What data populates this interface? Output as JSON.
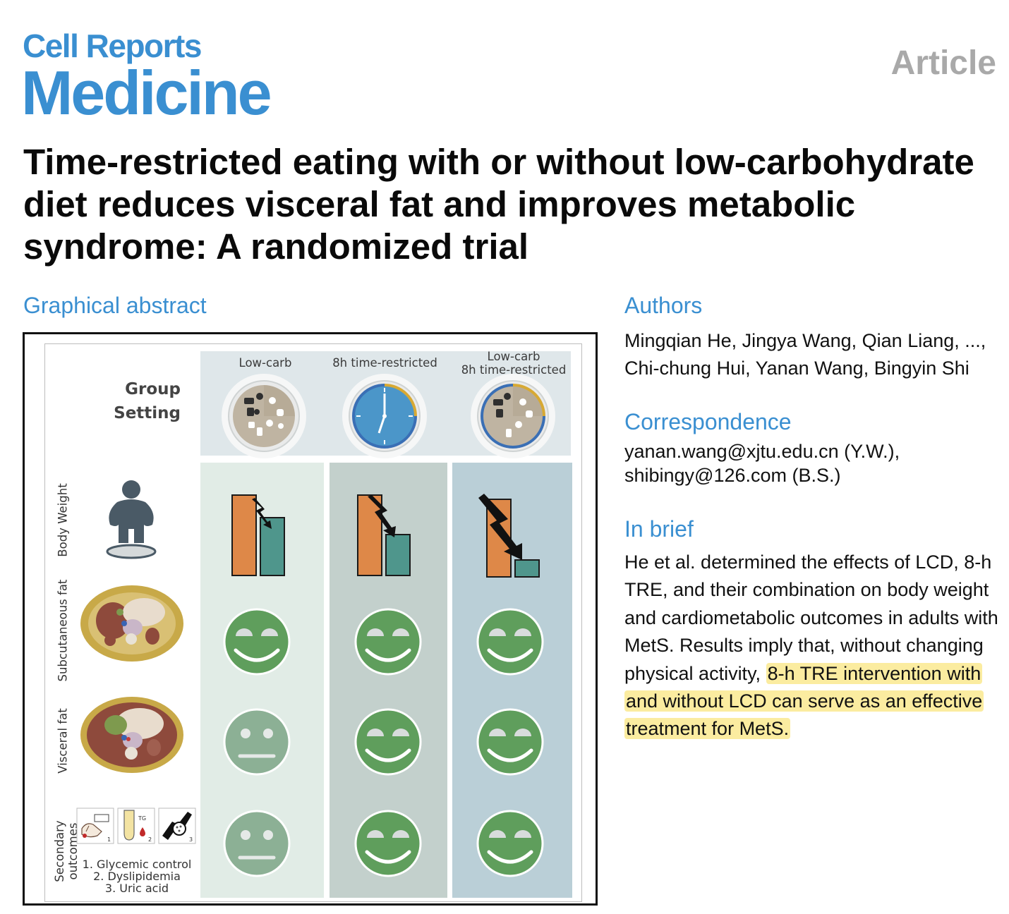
{
  "journal": {
    "line1": "Cell Reports",
    "line2": "Medicine",
    "article_type": "Article"
  },
  "title": "Time-restricted eating with or without low-carbohydrate diet reduces visceral fat and improves metabolic syndrome: A randomized trial",
  "graphical_abstract": {
    "heading": "Graphical abstract",
    "group_setting": [
      "Group",
      "Setting"
    ],
    "groups": [
      {
        "label": "Low-carb"
      },
      {
        "label": "8h time-restricted"
      },
      {
        "label_line1": "Low-carb",
        "label_line2": "8h time-restricted"
      }
    ],
    "rows": [
      {
        "label": "Body Weight"
      },
      {
        "label": "Subcutaneous fat"
      },
      {
        "label": "Visceral fat"
      },
      {
        "label_line1": "Secondary",
        "label_line2": "outcomes"
      }
    ],
    "secondary_outcomes": [
      "1. Glycemic control",
      "2. Dyslipidemia",
      "3. Uric acid"
    ],
    "icon_numbers": [
      "1",
      "2",
      "3"
    ],
    "tg_label": "TG",
    "colors": {
      "col1_bg": "#e1ece6",
      "col2_bg": "#c3d0cc",
      "col3_bg": "#bacfd7",
      "header_bg": "#dfe7ea",
      "bar_before": "#de8848",
      "bar_after": "#4f968c",
      "face_strong": "#5f9e5c",
      "face_neutral": "#8cb095"
    },
    "faces": [
      [
        "happy",
        "happy",
        "happy"
      ],
      [
        "neutral",
        "happy",
        "happy"
      ],
      [
        "neutral",
        "happy",
        "happy"
      ]
    ]
  },
  "authors": {
    "heading": "Authors",
    "line1": "Mingqian He, Jingya Wang, Qian Liang, ...,",
    "line2": "Chi-chung Hui, Yanan Wang, Bingyin Shi"
  },
  "correspondence": {
    "heading": "Correspondence",
    "line1": "yanan.wang@xjtu.edu.cn (Y.W.),",
    "line2": "shibingy@126.com (B.S.)"
  },
  "in_brief": {
    "heading": "In brief",
    "text": "He et al. determined the effects of LCD, 8-h TRE, and their combination on body weight and cardiometabolic outcomes in adults with MetS. Results imply that, without changing physical activity, ",
    "highlight": "8-h TRE intervention with and without LCD can serve as an effective treatment for MetS."
  }
}
